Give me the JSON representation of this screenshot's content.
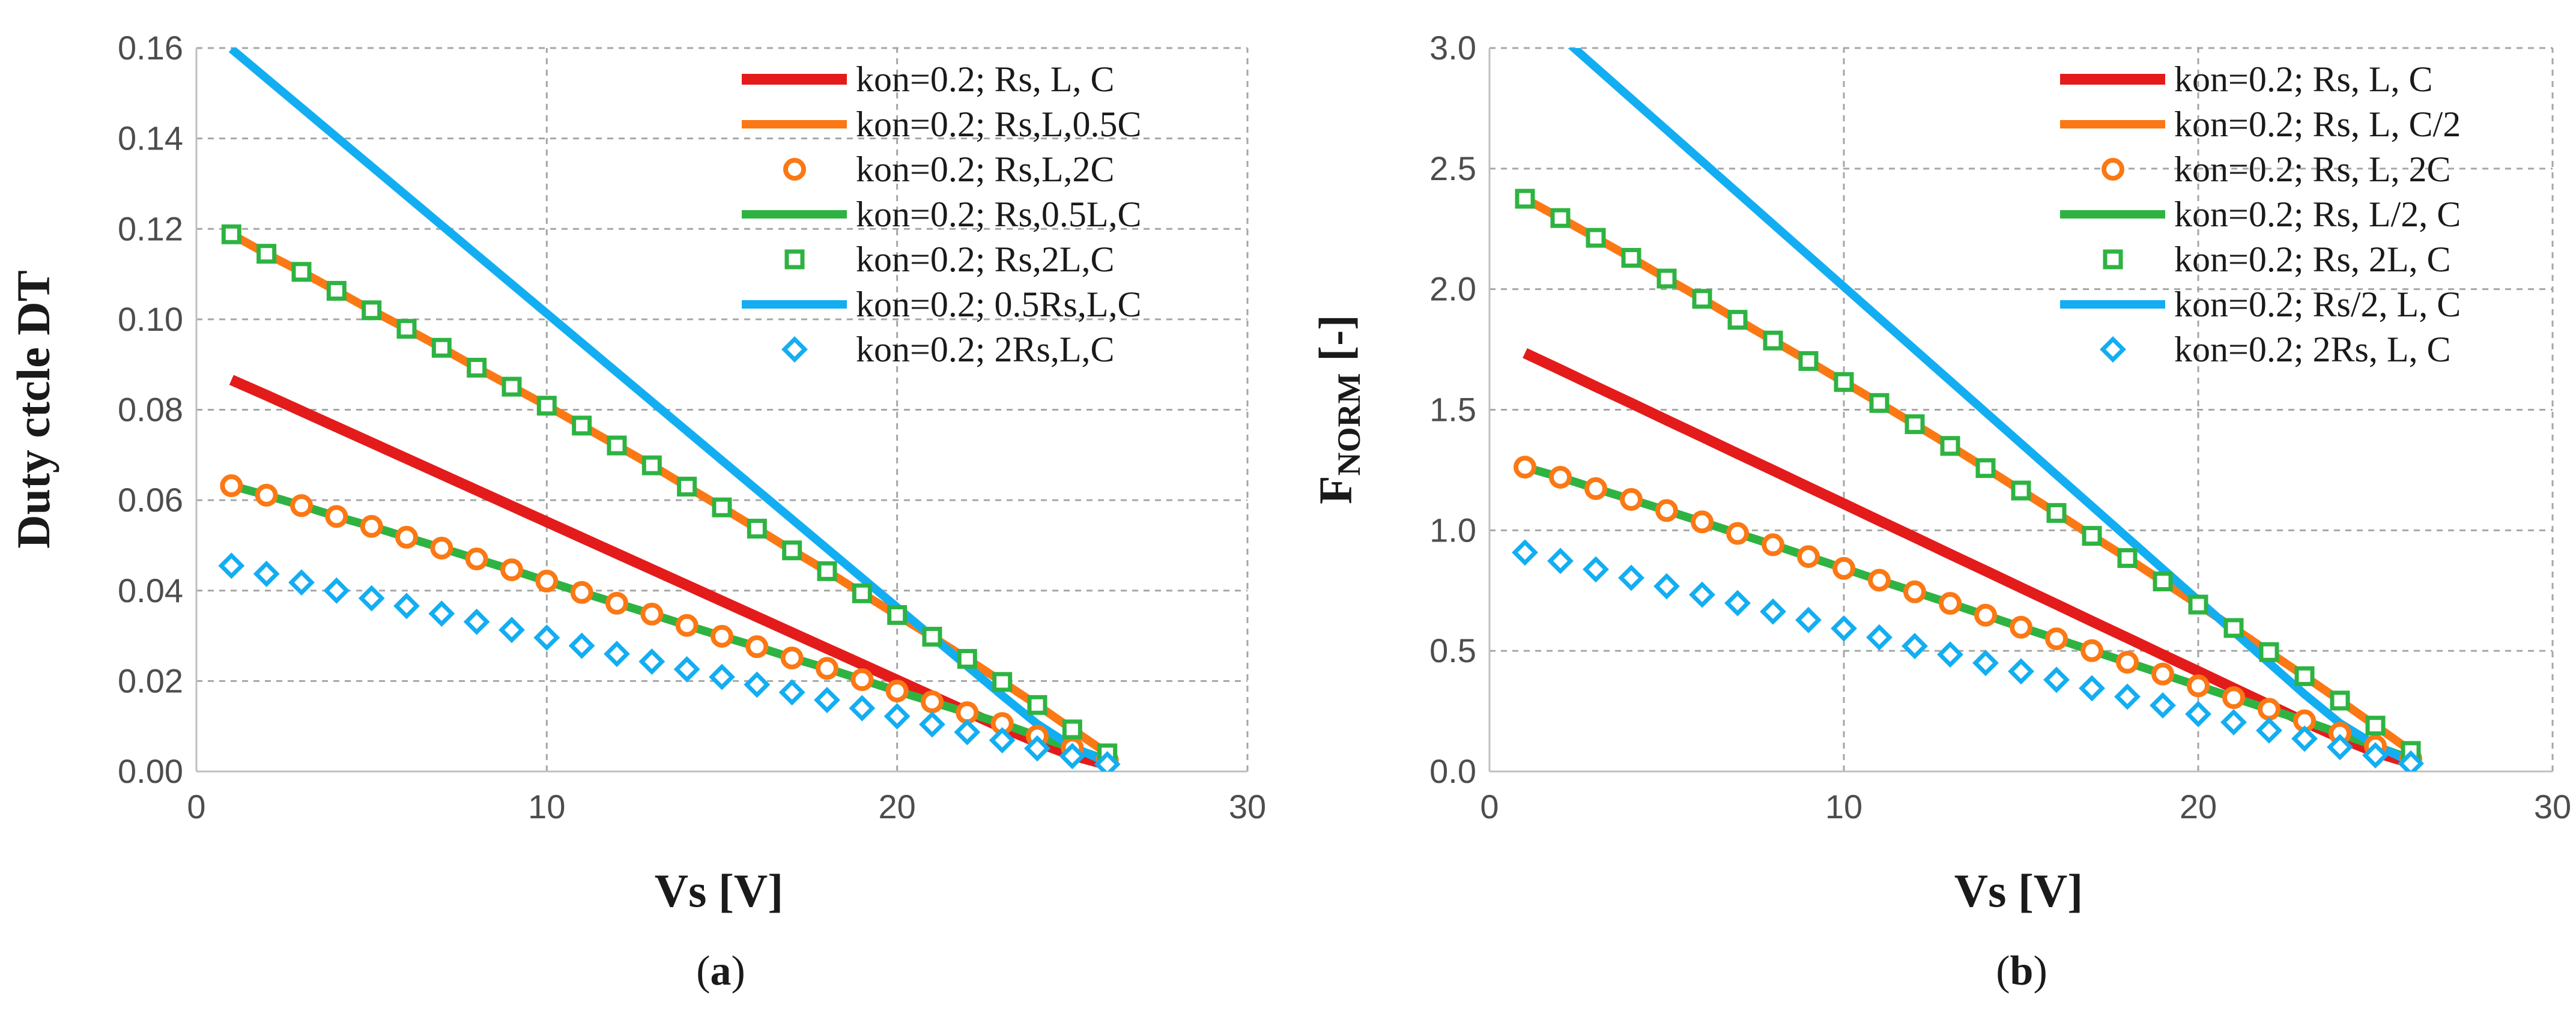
{
  "colors": {
    "red": "#e41b1b",
    "orange": "#fb7814",
    "green": "#2eb342",
    "blue": "#13aef2"
  },
  "chart_data": [
    {
      "id": "a",
      "type": "line",
      "caption_letter": "a",
      "xlabel": "Vs [V]",
      "ylabel": "Duty ctcle DT",
      "xlim": [
        0,
        30
      ],
      "ylim": [
        0,
        0.16
      ],
      "xticks": [
        0,
        10,
        20,
        30
      ],
      "xtick_labels": [
        "0",
        "10",
        "20",
        "30"
      ],
      "yticks": [
        0,
        0.02,
        0.04,
        0.06,
        0.08,
        0.1,
        0.12,
        0.14,
        0.16
      ],
      "ytick_labels": [
        "0.00",
        "0.02",
        "0.04",
        "0.06",
        "0.08",
        "0.10",
        "0.12",
        "0.14",
        "0.16"
      ],
      "grid": true,
      "legend_position": "top-right",
      "x": [
        1,
        2,
        3,
        4,
        5,
        6,
        7,
        8,
        9,
        10,
        11,
        12,
        13,
        14,
        15,
        16,
        17,
        18,
        19,
        20,
        21,
        22,
        23,
        24,
        25,
        26
      ],
      "series": [
        {
          "name": "kon=0.2; Rs, L, C",
          "style": "line",
          "color": "red",
          "values": [
            0.0866,
            0.0832,
            0.0797,
            0.0762,
            0.0727,
            0.0692,
            0.0657,
            0.0622,
            0.0587,
            0.0552,
            0.0517,
            0.0482,
            0.0447,
            0.0412,
            0.0377,
            0.0342,
            0.0307,
            0.0272,
            0.0237,
            0.0202,
            0.0167,
            0.0132,
            0.0097,
            0.0065,
            0.0036,
            0.0015
          ]
        },
        {
          "name": "kon=0.2; Rs,L,0.5C",
          "style": "line",
          "color": "orange",
          "values": [
            0.1188,
            0.1145,
            0.1105,
            0.1063,
            0.102,
            0.0979,
            0.0937,
            0.0893,
            0.0851,
            0.0809,
            0.0765,
            0.0721,
            0.0677,
            0.063,
            0.0584,
            0.0537,
            0.0489,
            0.0443,
            0.0394,
            0.0346,
            0.0298,
            0.0249,
            0.0198,
            0.0147,
            0.0093,
            0.004
          ]
        },
        {
          "name": "kon=0.2; Rs,L,2C",
          "style": "circle",
          "color": "orange",
          "values": [
            0.0632,
            0.0611,
            0.0588,
            0.0564,
            0.0542,
            0.0518,
            0.0494,
            0.047,
            0.0446,
            0.0421,
            0.0396,
            0.0372,
            0.0348,
            0.0323,
            0.0299,
            0.0276,
            0.0251,
            0.0228,
            0.0203,
            0.0178,
            0.0154,
            0.013,
            0.0106,
            0.0078,
            0.0052,
            0.0025
          ]
        },
        {
          "name": "kon=0.2; Rs,0.5L,C",
          "style": "line",
          "color": "green",
          "values": [
            0.0632,
            0.0611,
            0.0588,
            0.0564,
            0.0542,
            0.0518,
            0.0494,
            0.047,
            0.0446,
            0.0421,
            0.0396,
            0.0372,
            0.0348,
            0.0323,
            0.0299,
            0.0276,
            0.0251,
            0.0228,
            0.0203,
            0.0178,
            0.0154,
            0.013,
            0.0106,
            0.0078,
            0.0052,
            0.0025
          ]
        },
        {
          "name": "kon=0.2; Rs,2L,C",
          "style": "square",
          "color": "green",
          "values": [
            0.1188,
            0.1145,
            0.1105,
            0.1063,
            0.102,
            0.0979,
            0.0937,
            0.0893,
            0.0851,
            0.0809,
            0.0765,
            0.0721,
            0.0677,
            0.063,
            0.0584,
            0.0537,
            0.0489,
            0.0443,
            0.0394,
            0.0346,
            0.0298,
            0.0249,
            0.0198,
            0.0147,
            0.0093,
            0.004
          ]
        },
        {
          "name": "kon=0.2; 0.5Rs,L,C",
          "style": "line",
          "color": "blue",
          "values": [
            0.1598,
            0.1533,
            0.1468,
            0.1403,
            0.1338,
            0.1273,
            0.1208,
            0.1143,
            0.1078,
            0.1013,
            0.0948,
            0.0883,
            0.0818,
            0.0753,
            0.0688,
            0.0623,
            0.0558,
            0.0493,
            0.0428,
            0.0363,
            0.0298,
            0.0233,
            0.0168,
            0.0105,
            0.0055,
            0.002
          ]
        },
        {
          "name": "kon=0.2; 2Rs,L,C",
          "style": "diamond",
          "color": "blue",
          "values": [
            0.0455,
            0.0437,
            0.0418,
            0.04,
            0.0383,
            0.0366,
            0.0349,
            0.0331,
            0.0313,
            0.0296,
            0.0278,
            0.026,
            0.0243,
            0.0226,
            0.0209,
            0.0192,
            0.0175,
            0.0158,
            0.014,
            0.0122,
            0.0104,
            0.0087,
            0.0069,
            0.0051,
            0.0034,
            0.0016
          ]
        }
      ]
    },
    {
      "id": "b",
      "type": "line",
      "caption_letter": "b",
      "xlabel": "Vs [V]",
      "ylabel_main": "F",
      "ylabel_sub": "NORM",
      "ylabel_tail": " [-]",
      "xlim": [
        0,
        30
      ],
      "ylim": [
        0,
        3
      ],
      "xticks": [
        0,
        10,
        20,
        30
      ],
      "xtick_labels": [
        "0",
        "10",
        "20",
        "30"
      ],
      "yticks": [
        0,
        0.5,
        1,
        1.5,
        2,
        2.5,
        3
      ],
      "ytick_labels": [
        "0.0",
        "0.5",
        "1.0",
        "1.5",
        "2.0",
        "2.5",
        "3.0"
      ],
      "grid": true,
      "legend_position": "top-right",
      "x": [
        1,
        2,
        3,
        4,
        5,
        6,
        7,
        8,
        9,
        10,
        11,
        12,
        13,
        14,
        15,
        16,
        17,
        18,
        19,
        20,
        21,
        22,
        23,
        24,
        25,
        26
      ],
      "series": [
        {
          "name": "kon=0.2; Rs, L, C",
          "style": "line",
          "color": "red",
          "values": [
            1.735,
            1.666,
            1.596,
            1.527,
            1.457,
            1.388,
            1.318,
            1.249,
            1.179,
            1.11,
            1.04,
            0.971,
            0.901,
            0.832,
            0.762,
            0.693,
            0.623,
            0.554,
            0.484,
            0.415,
            0.345,
            0.276,
            0.206,
            0.14,
            0.08,
            0.035
          ]
        },
        {
          "name": "kon=0.2; Rs, L, C/2",
          "style": "line",
          "color": "orange",
          "values": [
            2.375,
            2.295,
            2.213,
            2.13,
            2.044,
            1.96,
            1.873,
            1.787,
            1.702,
            1.615,
            1.528,
            1.44,
            1.35,
            1.258,
            1.165,
            1.072,
            0.977,
            0.885,
            0.788,
            0.692,
            0.595,
            0.495,
            0.395,
            0.294,
            0.19,
            0.085
          ]
        },
        {
          "name": "kon=0.2; Rs, L, 2C",
          "style": "circle",
          "color": "orange",
          "values": [
            1.262,
            1.22,
            1.173,
            1.128,
            1.082,
            1.035,
            0.987,
            0.94,
            0.891,
            0.842,
            0.793,
            0.745,
            0.697,
            0.648,
            0.598,
            0.55,
            0.501,
            0.453,
            0.404,
            0.355,
            0.306,
            0.258,
            0.21,
            0.158,
            0.105,
            0.052
          ]
        },
        {
          "name": "kon=0.2; Rs, L/2, C",
          "style": "line",
          "color": "green",
          "values": [
            1.262,
            1.22,
            1.173,
            1.128,
            1.082,
            1.035,
            0.987,
            0.94,
            0.891,
            0.842,
            0.793,
            0.745,
            0.697,
            0.648,
            0.598,
            0.55,
            0.501,
            0.453,
            0.404,
            0.355,
            0.306,
            0.258,
            0.21,
            0.158,
            0.105,
            0.052
          ]
        },
        {
          "name": "kon=0.2; Rs, 2L, C",
          "style": "square",
          "color": "green",
          "values": [
            2.375,
            2.295,
            2.213,
            2.13,
            2.044,
            1.96,
            1.873,
            1.787,
            1.702,
            1.615,
            1.528,
            1.44,
            1.35,
            1.258,
            1.165,
            1.072,
            0.977,
            0.885,
            0.788,
            0.692,
            0.595,
            0.495,
            0.395,
            0.294,
            0.19,
            0.085
          ]
        },
        {
          "name": "kon=0.2; Rs/2, L, C",
          "style": "line",
          "color": "blue",
          "values": [
            3.18,
            3.05,
            2.92,
            2.79,
            2.66,
            2.53,
            2.4,
            2.27,
            2.14,
            2.01,
            1.88,
            1.75,
            1.62,
            1.49,
            1.36,
            1.23,
            1.1,
            0.97,
            0.84,
            0.71,
            0.58,
            0.45,
            0.32,
            0.2,
            0.11,
            0.04
          ]
        },
        {
          "name": "kon=0.2; 2Rs, L, C",
          "style": "diamond",
          "color": "blue",
          "values": [
            0.908,
            0.873,
            0.838,
            0.803,
            0.768,
            0.733,
            0.698,
            0.663,
            0.628,
            0.593,
            0.556,
            0.52,
            0.485,
            0.45,
            0.415,
            0.38,
            0.345,
            0.31,
            0.274,
            0.238,
            0.204,
            0.17,
            0.136,
            0.101,
            0.067,
            0.033
          ]
        }
      ]
    }
  ]
}
